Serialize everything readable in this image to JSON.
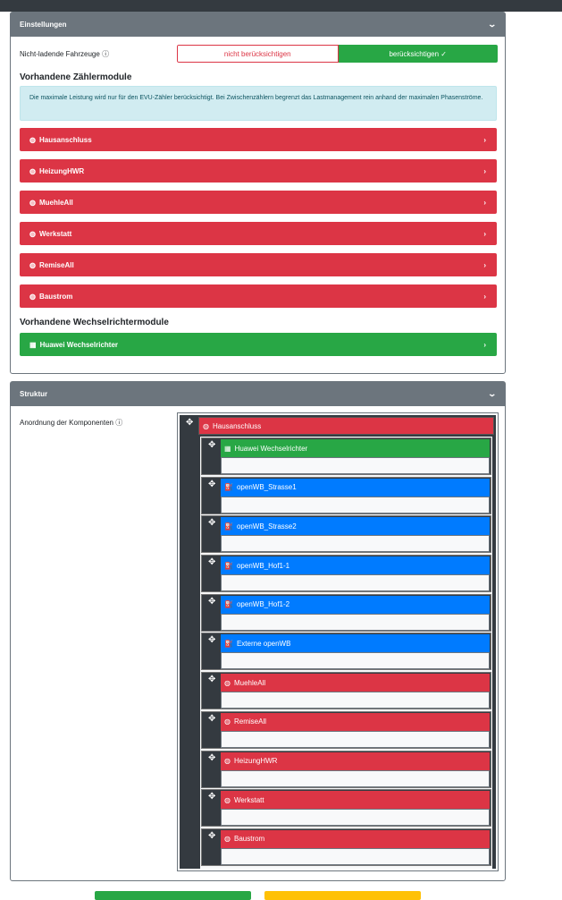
{
  "settings": {
    "title": "Einstellungen",
    "non_charging_label": "Nicht-ladende Fahrzeuge",
    "toggle_off": "nicht berücksichtigen",
    "toggle_on": "berücksichtigen ✓",
    "meters_heading": "Vorhandene Zählermodule",
    "alert": "Die maximale Leistung wird nur für den EVU-Zähler berücksichtigt. Bei Zwischenzählern begrenzt das Lastmanagement rein anhand der maximalen Phasenströme.",
    "meters": [
      "Hausanschluss",
      "HeizungHWR",
      "MuehleAll",
      "Werkstatt",
      "RemiseAll",
      "Baustrom"
    ],
    "inverters_heading": "Vorhandene Wechselrichtermodule",
    "inverters": [
      "Huawei Wechselrichter"
    ]
  },
  "structure": {
    "title": "Struktur",
    "label": "Anordnung der Komponenten",
    "root": "Hausanschluss",
    "children": [
      {
        "name": "Huawei Wechselrichter",
        "type": "inverter"
      },
      {
        "name": "openWB_Strasse1",
        "type": "chargepoint"
      },
      {
        "name": "openWB_Strasse2",
        "type": "chargepoint"
      },
      {
        "name": "openWB_Hof1-1",
        "type": "chargepoint"
      },
      {
        "name": "openWB_Hof1-2",
        "type": "chargepoint"
      },
      {
        "name": "Externe openWB",
        "type": "chargepoint"
      },
      {
        "name": "MuehleAll",
        "type": "counter"
      },
      {
        "name": "RemiseAll",
        "type": "counter"
      },
      {
        "name": "HeizungHWR",
        "type": "counter"
      },
      {
        "name": "Werkstatt",
        "type": "counter"
      },
      {
        "name": "Baustrom",
        "type": "counter"
      }
    ]
  },
  "colors": {
    "counter": "#dc3545",
    "inverter": "#28a745",
    "chargepoint": "#007bff"
  }
}
